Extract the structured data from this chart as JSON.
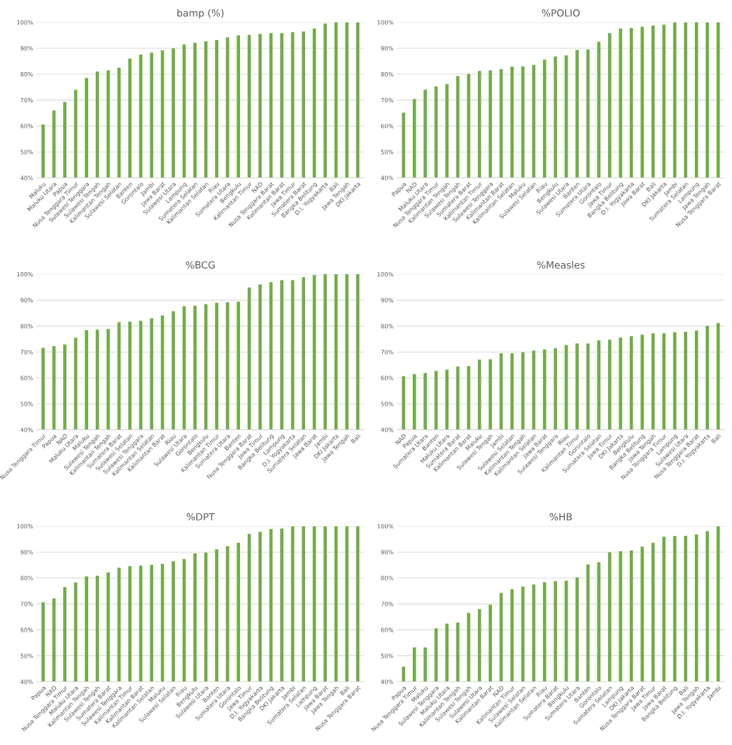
{
  "chart_data": [
    {
      "type": "bar",
      "title": "bamp (%)",
      "color": "#70ad47",
      "grid": "y",
      "ylim": [
        40,
        100
      ],
      "yticks": [
        {
          "value": 40,
          "label": "40%"
        },
        {
          "value": 50,
          "label": "50%"
        },
        {
          "value": 60,
          "label": "60%"
        },
        {
          "value": 70,
          "label": "70%"
        },
        {
          "value": 80,
          "label": "80%"
        },
        {
          "value": 90,
          "label": "90%"
        },
        {
          "value": 100,
          "label": "100%"
        }
      ],
      "categories": [
        "Maluku",
        "Maluku Utara",
        "Papua",
        "Nusa Tenggara Timur",
        "Sulawesi Tenggara",
        "Sulawesi Tengah",
        "Kalimantan Tengah",
        "Sulawesi Selatan",
        "Banten",
        "Gorontalo",
        "Jambi",
        "Jawa Barat",
        "Sulawesi Utara",
        "Lampung",
        "Sumatera Selatan",
        "Kalimantan Selatan",
        "Riau",
        "Sumatera Utara",
        "Bengkulu",
        "Kalimantan Timur",
        "NAD",
        "Nusa Tenggara Barat",
        "Kalimantan Barat",
        "Jawa Timur",
        "Sumatera Barat",
        "Bangka Belitung",
        "D.I. Yogyakarta",
        "Bali",
        "Jawa Tengah",
        "DKI Jakarta"
      ],
      "values": [
        60.6,
        66,
        69.3,
        74,
        78.5,
        81,
        81.5,
        82.5,
        86,
        87.6,
        88.3,
        89.2,
        90,
        91.5,
        92.1,
        92.7,
        93.2,
        94.2,
        95,
        95.1,
        95.5,
        95.9,
        95.9,
        96.2,
        96.5,
        97.6,
        99.5,
        100,
        100,
        100
      ]
    },
    {
      "type": "bar",
      "title": "%POLIO",
      "color": "#70ad47",
      "grid": "y",
      "ylim": [
        40,
        100
      ],
      "yticks": [
        {
          "value": 40,
          "label": "40%"
        },
        {
          "value": 50,
          "label": "50%"
        },
        {
          "value": 60,
          "label": "60%"
        },
        {
          "value": 70,
          "label": "70%"
        },
        {
          "value": 80,
          "label": "80%"
        },
        {
          "value": 90,
          "label": "90%"
        },
        {
          "value": 100,
          "label": "100%"
        }
      ],
      "categories": [
        "Papua",
        "NAD",
        "Maluku Utara",
        "Nusa Tenggara Timur",
        "Kalimantan Tengah",
        "Sulawesi Tengah",
        "Sumatera Barat",
        "Kalimantan Timur",
        "Sulawesi Tenggara",
        "Kalimantan Barat",
        "Kalimantan Selatan",
        "Maluku",
        "Sulawesi Selatan",
        "Riau",
        "Bengkulu",
        "Sulawesi Utara",
        "Banten",
        "Sumatera Utara",
        "Gorontalo",
        "Jawa Timur",
        "Bangka Belitung",
        "D.I. Yogyakarta",
        "Jawa Barat",
        "Bali",
        "DKI Jakarta",
        "Jambi",
        "Sumatera Selatan",
        "Lampung",
        "Jawa Tengah",
        "Nusa Tenggara Barat"
      ],
      "values": [
        65.2,
        70.4,
        74,
        75.3,
        76.2,
        79.3,
        80.1,
        81.2,
        81.5,
        82,
        82.9,
        83,
        83.6,
        85.6,
        86.8,
        87.2,
        89.3,
        89.5,
        92.5,
        95.9,
        97.6,
        97.8,
        98.3,
        98.8,
        99.1,
        100,
        100,
        100,
        100,
        100
      ]
    },
    {
      "type": "bar",
      "title": "%BCG",
      "color": "#70ad47",
      "grid": "y",
      "ylim": [
        40,
        100
      ],
      "yticks": [
        {
          "value": 40,
          "label": "40%"
        },
        {
          "value": 50,
          "label": "50%"
        },
        {
          "value": 60,
          "label": "60%"
        },
        {
          "value": 70,
          "label": "70%"
        },
        {
          "value": 80,
          "label": "80%"
        },
        {
          "value": 90,
          "label": "90%"
        },
        {
          "value": 100,
          "label": "100%"
        }
      ],
      "categories": [
        "Nusa Tenggara Timur",
        "Papua",
        "NAD",
        "Maluku Utara",
        "Maluku",
        "Sulawesi Tengah",
        "Kalimantan Tengah",
        "Sumatera Barat",
        "Sulawesi Selatan",
        "Sulawesi Tenggara",
        "Kalimantan Selatan",
        "Kalimantan Barat",
        "Riau",
        "Sulawesi Utara",
        "Gorontalo",
        "Bengkulu",
        "Kalimantan Timur",
        "Sumatera Utara",
        "Banten",
        "Nusa Tenggara Barat",
        "Jawa Timur",
        "Bangka Belitung",
        "Lampung",
        "D.I. Yogyakarta",
        "Sumatera Selatan",
        "Jawa Barat",
        "Jambi",
        "DKI Jakarta",
        "Jawa Tengah",
        "Bali"
      ],
      "values": [
        71.6,
        72.2,
        72.9,
        75.5,
        78.4,
        78.6,
        78.9,
        81.5,
        81.7,
        82.1,
        83,
        84.1,
        85.7,
        87.7,
        87.9,
        88.5,
        89,
        89.2,
        89.4,
        94.9,
        96.1,
        97,
        97.7,
        97.7,
        98.9,
        99.7,
        100,
        100,
        100,
        100
      ]
    },
    {
      "type": "bar",
      "title": "%Measles",
      "color": "#70ad47",
      "grid": "y",
      "ylim": [
        40,
        100
      ],
      "yticks": [
        {
          "value": 40,
          "label": "40%"
        },
        {
          "value": 50,
          "label": "50%"
        },
        {
          "value": 60,
          "label": "60%"
        },
        {
          "value": 70,
          "label": "70%"
        },
        {
          "value": 80,
          "label": "80%"
        },
        {
          "value": 90,
          "label": "90%"
        },
        {
          "value": 100,
          "label": "100%"
        }
      ],
      "categories": [
        "NAD",
        "Papua",
        "Sumatera Utara",
        "Banten",
        "Maluku Utara",
        "Sumatera Barat",
        "Kalimantan Barat",
        "Maluku",
        "Sulawesi Tengah",
        "Jambi",
        "Sulawesi Selatan",
        "Kalimantan Tengah",
        "Kalimantan Selatan",
        "Jawa Barat",
        "Sulawesi Tenggara",
        "Riau",
        "Kalimantan Timur",
        "Gorontalo",
        "Sumatera Selatan",
        "Jawa Timur",
        "DKI Jakarta",
        "Bengkulu",
        "Bangka Belitung",
        "Jawa Tengah",
        "Nusa Tenggara Timur",
        "Lampung",
        "Sulawesi Utara",
        "Nusa Tenggara Barat",
        "D.I. Yogyakarta",
        "Bali"
      ],
      "values": [
        60.7,
        61.5,
        61.9,
        62.7,
        63.2,
        64.4,
        64.6,
        67.1,
        67.2,
        69.5,
        69.5,
        69.9,
        70.5,
        71,
        71.5,
        72.7,
        73.3,
        73.3,
        74.5,
        74.8,
        75.6,
        76.1,
        76.7,
        77.2,
        77.2,
        77.6,
        77.8,
        78.3,
        80.1,
        81.2
      ]
    },
    {
      "type": "bar",
      "title": "%DPT",
      "color": "#70ad47",
      "grid": "y",
      "ylim": [
        40,
        100
      ],
      "yticks": [
        {
          "value": 40,
          "label": "40%"
        },
        {
          "value": 50,
          "label": "50%"
        },
        {
          "value": 60,
          "label": "60%"
        },
        {
          "value": 70,
          "label": "70%"
        },
        {
          "value": 80,
          "label": "80%"
        },
        {
          "value": 90,
          "label": "90%"
        },
        {
          "value": 100,
          "label": "100%"
        }
      ],
      "categories": [
        "Papua",
        "NAD",
        "Nusa Tenggara Timur",
        "Maluku Utara",
        "Kalimantan Tengah",
        "Sulawesi Tengah",
        "Sumatera Barat",
        "Sulawesi Tenggara",
        "Kalimantan Timur",
        "Kalimantan Barat",
        "Kalimantan Selatan",
        "Maluku",
        "Sulawesi Selatan",
        "Riau",
        "Bengkulu",
        "Sulawesi Utara",
        "Banten",
        "Sumatera Utara",
        "Gorontalo",
        "Jawa Timur",
        "D.I. Yogyakarta",
        "Bangka Belitung",
        "DKI Jakarta",
        "Jambi",
        "Sumatera Selatan",
        "Lampung",
        "Jawa Barat",
        "Jawa Tengah",
        "Bali",
        "Nusa Tenggara Barat"
      ],
      "values": [
        70.6,
        72.1,
        76.5,
        78.3,
        80.6,
        80.9,
        82.2,
        84,
        84.6,
        84.8,
        85.1,
        85.5,
        86.5,
        87.3,
        89.5,
        89.8,
        91.1,
        92.3,
        93.6,
        97,
        97.8,
        98.9,
        99.1,
        100,
        100,
        100,
        100,
        100,
        100,
        100
      ]
    },
    {
      "type": "bar",
      "title": "%HB",
      "color": "#70ad47",
      "grid": "y",
      "ylim": [
        40,
        100
      ],
      "yticks": [
        {
          "value": 40,
          "label": "40%"
        },
        {
          "value": 50,
          "label": "50%"
        },
        {
          "value": 60,
          "label": "60%"
        },
        {
          "value": 70,
          "label": "70%"
        },
        {
          "value": 80,
          "label": "80%"
        },
        {
          "value": 90,
          "label": "90%"
        },
        {
          "value": 100,
          "label": "100%"
        }
      ],
      "categories": [
        "Papua",
        "Nusa Tenggara Timur",
        "Maluku",
        "Sulawesi Tenggara",
        "Maluku Utara",
        "Kalimantan Tengah",
        "Sulawesi Tengah",
        "Sulawesi Utara",
        "Kalimantan Barat",
        "NAD",
        "Kalimantan Timur",
        "Sulawesi Selatan",
        "Kalimantan Selatan",
        "Riau",
        "Sumatera Barat",
        "Bengkulu",
        "Sumatera Utara",
        "Banten",
        "Gorontalo",
        "Sumatera Selatan",
        "Lampung",
        "DKI Jakarta",
        "Nusa Tenggara Barat",
        "Jawa Timur",
        "Jawa Barat",
        "Bangka Belitung",
        "Bali",
        "Jawa Tengah",
        "D.I. Yogyakarta",
        "Jambi"
      ],
      "values": [
        45.8,
        53.2,
        53.2,
        60.6,
        62.4,
        62.8,
        66.5,
        68,
        69.7,
        74.3,
        75.7,
        76.7,
        77.5,
        78.4,
        78.8,
        79,
        80.2,
        85.3,
        86.1,
        89.9,
        90.3,
        90.6,
        92.1,
        93.6,
        95.9,
        96.2,
        96.3,
        96.8,
        98.1,
        100
      ]
    }
  ]
}
